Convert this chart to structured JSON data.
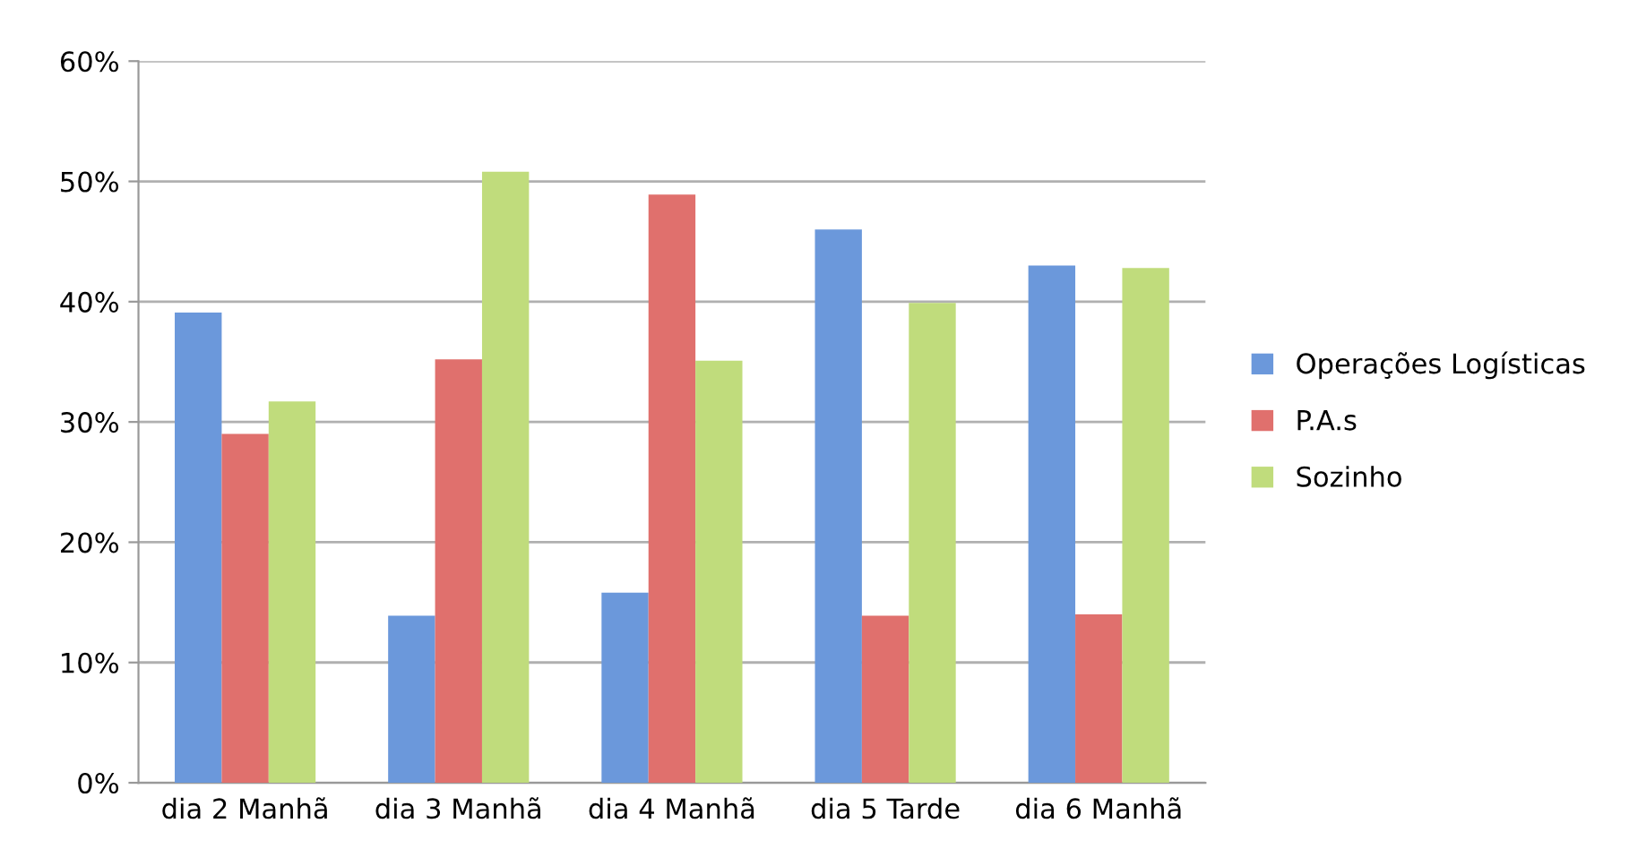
{
  "chart_data": {
    "type": "bar",
    "categories": [
      "dia 2 Manhã",
      "dia 3 Manhã",
      "dia 4 Manhã",
      "dia 5 Tarde",
      "dia 6 Manhã"
    ],
    "series": [
      {
        "name": "Operações Logísticas",
        "color": "#6b98db",
        "values": [
          39.1,
          13.9,
          15.8,
          46.0,
          43.0
        ]
      },
      {
        "name": "P.A.s",
        "color": "#e0706d",
        "values": [
          29.0,
          35.2,
          48.9,
          13.9,
          14.0
        ]
      },
      {
        "name": "Sozinho",
        "color": "#c0dc7c",
        "values": [
          31.7,
          50.8,
          35.1,
          39.9,
          42.8
        ]
      }
    ],
    "ylim": [
      0,
      60
    ],
    "yticks": [
      {
        "value": 0,
        "label": "0%"
      },
      {
        "value": 10,
        "label": "10%"
      },
      {
        "value": 20,
        "label": "20%"
      },
      {
        "value": 30,
        "label": "30%"
      },
      {
        "value": 40,
        "label": "40%"
      },
      {
        "value": 50,
        "label": "50%"
      },
      {
        "value": 60,
        "label": "60%"
      }
    ],
    "grid": "y",
    "legend": "right"
  }
}
